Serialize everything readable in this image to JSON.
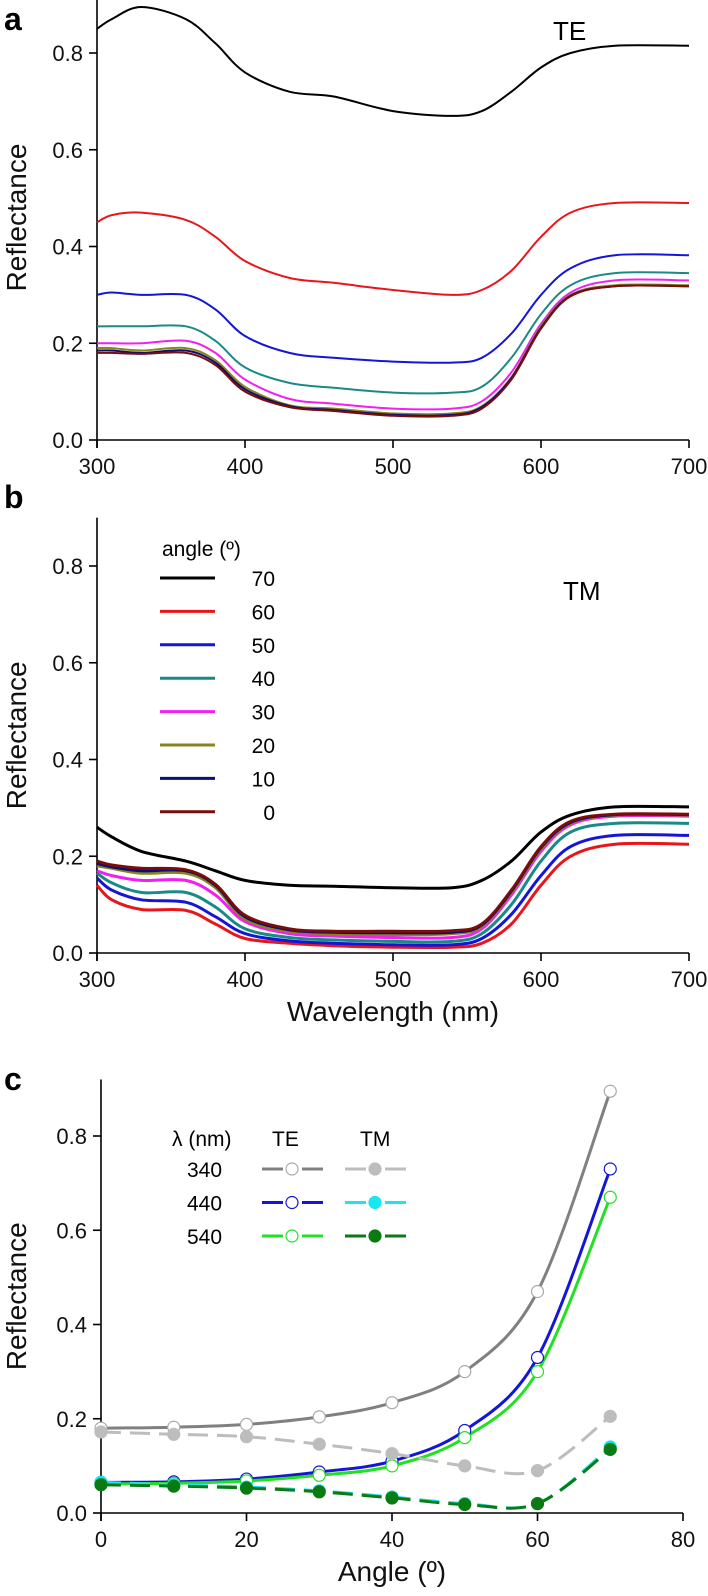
{
  "chart_data": [
    {
      "panel": "a",
      "type": "line",
      "annotation": "TE",
      "xlabel": "",
      "ylabel": "Reflectance",
      "xlim": [
        300,
        700
      ],
      "ylim": [
        0,
        0.92
      ],
      "xticks": [
        300,
        400,
        500,
        600,
        700
      ],
      "yticks": [
        "0.0",
        "0.2",
        "0.4",
        "0.6",
        "0.8"
      ],
      "x": [
        300,
        310,
        330,
        360,
        380,
        400,
        430,
        460,
        500,
        540,
        560,
        580,
        600,
        620,
        650,
        700
      ],
      "series": [
        {
          "name": "70",
          "color": "#000000",
          "values": [
            0.85,
            0.87,
            0.895,
            0.87,
            0.82,
            0.76,
            0.72,
            0.71,
            0.68,
            0.67,
            0.68,
            0.72,
            0.77,
            0.8,
            0.815,
            0.815
          ]
        },
        {
          "name": "60",
          "color": "#e8161b",
          "values": [
            0.45,
            0.465,
            0.47,
            0.455,
            0.42,
            0.37,
            0.335,
            0.325,
            0.31,
            0.3,
            0.31,
            0.35,
            0.42,
            0.47,
            0.49,
            0.49
          ]
        },
        {
          "name": "50",
          "color": "#1515d8",
          "values": [
            0.3,
            0.305,
            0.3,
            0.3,
            0.27,
            0.215,
            0.18,
            0.17,
            0.162,
            0.16,
            0.17,
            0.22,
            0.3,
            0.355,
            0.382,
            0.382
          ]
        },
        {
          "name": "40",
          "color": "#1a8a86",
          "values": [
            0.235,
            0.235,
            0.235,
            0.235,
            0.205,
            0.15,
            0.118,
            0.108,
            0.098,
            0.098,
            0.11,
            0.17,
            0.26,
            0.32,
            0.345,
            0.345
          ]
        },
        {
          "name": "30",
          "color": "#f21ef2",
          "values": [
            0.2,
            0.2,
            0.2,
            0.205,
            0.18,
            0.125,
            0.085,
            0.075,
            0.065,
            0.065,
            0.08,
            0.14,
            0.24,
            0.305,
            0.33,
            0.33
          ]
        },
        {
          "name": "20",
          "color": "#86861a",
          "values": [
            0.19,
            0.19,
            0.185,
            0.19,
            0.165,
            0.11,
            0.072,
            0.065,
            0.055,
            0.055,
            0.07,
            0.13,
            0.235,
            0.3,
            0.32,
            0.32
          ]
        },
        {
          "name": "10",
          "color": "#0c0c7a",
          "values": [
            0.185,
            0.185,
            0.18,
            0.185,
            0.16,
            0.105,
            0.07,
            0.062,
            0.052,
            0.052,
            0.068,
            0.128,
            0.232,
            0.298,
            0.318,
            0.318
          ]
        },
        {
          "name": "0",
          "color": "#7a0c0c",
          "values": [
            0.18,
            0.18,
            0.178,
            0.18,
            0.155,
            0.1,
            0.068,
            0.06,
            0.05,
            0.05,
            0.065,
            0.125,
            0.23,
            0.297,
            0.318,
            0.318
          ]
        }
      ]
    },
    {
      "panel": "b",
      "type": "line",
      "annotation": "TM",
      "xlabel": "Wavelength (nm)",
      "ylabel": "Reflectance",
      "xlim": [
        300,
        700
      ],
      "ylim": [
        0,
        0.9
      ],
      "xticks": [
        300,
        400,
        500,
        600,
        700
      ],
      "yticks": [
        "0.0",
        "0.2",
        "0.4",
        "0.6",
        "0.8"
      ],
      "legend_title": "angle (º)",
      "legend_position": "top-left",
      "x": [
        300,
        310,
        330,
        360,
        380,
        400,
        430,
        460,
        500,
        540,
        560,
        580,
        600,
        620,
        650,
        700
      ],
      "series": [
        {
          "name": "70",
          "color": "#000000",
          "values": [
            0.26,
            0.24,
            0.21,
            0.19,
            0.17,
            0.15,
            0.14,
            0.138,
            0.135,
            0.135,
            0.15,
            0.19,
            0.25,
            0.285,
            0.302,
            0.302
          ]
        },
        {
          "name": "60",
          "color": "#e8161b",
          "values": [
            0.14,
            0.11,
            0.09,
            0.088,
            0.06,
            0.03,
            0.02,
            0.015,
            0.012,
            0.012,
            0.02,
            0.06,
            0.14,
            0.2,
            0.225,
            0.225
          ]
        },
        {
          "name": "50",
          "color": "#1515d8",
          "values": [
            0.155,
            0.13,
            0.11,
            0.105,
            0.075,
            0.04,
            0.025,
            0.02,
            0.017,
            0.017,
            0.03,
            0.08,
            0.16,
            0.22,
            0.243,
            0.243
          ]
        },
        {
          "name": "40",
          "color": "#1a8a86",
          "values": [
            0.165,
            0.145,
            0.125,
            0.125,
            0.095,
            0.05,
            0.032,
            0.027,
            0.024,
            0.024,
            0.04,
            0.1,
            0.19,
            0.25,
            0.268,
            0.268
          ]
        },
        {
          "name": "30",
          "color": "#f21ef2",
          "values": [
            0.17,
            0.16,
            0.15,
            0.15,
            0.12,
            0.065,
            0.04,
            0.035,
            0.032,
            0.032,
            0.05,
            0.12,
            0.21,
            0.265,
            0.283,
            0.283
          ]
        },
        {
          "name": "20",
          "color": "#86861a",
          "values": [
            0.18,
            0.175,
            0.165,
            0.165,
            0.135,
            0.07,
            0.045,
            0.04,
            0.038,
            0.04,
            0.055,
            0.125,
            0.215,
            0.268,
            0.285,
            0.285
          ]
        },
        {
          "name": "10",
          "color": "#0c0c7a",
          "values": [
            0.185,
            0.178,
            0.17,
            0.17,
            0.14,
            0.075,
            0.048,
            0.043,
            0.042,
            0.043,
            0.058,
            0.128,
            0.218,
            0.27,
            0.286,
            0.286
          ]
        },
        {
          "name": "0",
          "color": "#7a0c0c",
          "values": [
            0.19,
            0.182,
            0.175,
            0.172,
            0.142,
            0.078,
            0.05,
            0.045,
            0.045,
            0.046,
            0.06,
            0.13,
            0.22,
            0.272,
            0.287,
            0.287
          ]
        }
      ]
    },
    {
      "panel": "c",
      "type": "line",
      "xlabel": "Angle (º)",
      "ylabel": "Reflectance",
      "xlim": [
        0,
        80
      ],
      "ylim": [
        0,
        0.92
      ],
      "xticks": [
        0,
        20,
        40,
        60,
        80
      ],
      "yticks": [
        "0.0",
        "0.2",
        "0.4",
        "0.6",
        "0.8"
      ],
      "legend_header": {
        "wavelength": "λ (nm)",
        "te": "TE",
        "tm": "TM"
      },
      "legend_position": "top-left",
      "x": [
        0,
        10,
        20,
        30,
        40,
        50,
        60,
        70
      ],
      "series": [
        {
          "name": "340",
          "mode": "TE",
          "color": "#808080",
          "marker_color": "#aaaaaa",
          "filled": false,
          "values": [
            0.18,
            0.182,
            0.188,
            0.204,
            0.234,
            0.3,
            0.47,
            0.895
          ]
        },
        {
          "name": "440",
          "mode": "TE",
          "color": "#1515d8",
          "marker_color": "#1515d8",
          "filled": false,
          "values": [
            0.065,
            0.066,
            0.072,
            0.087,
            0.11,
            0.175,
            0.33,
            0.73
          ]
        },
        {
          "name": "540",
          "mode": "TE",
          "color": "#22e022",
          "marker_color": "#22e022",
          "filled": false,
          "values": [
            0.062,
            0.063,
            0.068,
            0.08,
            0.1,
            0.16,
            0.3,
            0.67
          ]
        },
        {
          "name": "340",
          "mode": "TM",
          "color": "#bdbdbd",
          "marker_color": "#bdbdbd",
          "filled": true,
          "values": [
            0.172,
            0.167,
            0.162,
            0.146,
            0.126,
            0.1,
            0.09,
            0.205
          ]
        },
        {
          "name": "440",
          "mode": "TM",
          "color": "#18e6f0",
          "marker_color": "#18e6f0",
          "filled": true,
          "values": [
            0.065,
            0.06,
            0.055,
            0.047,
            0.034,
            0.02,
            0.02,
            0.14
          ]
        },
        {
          "name": "540",
          "mode": "TM",
          "color": "#0a7a12",
          "marker_color": "#0a7a12",
          "filled": true,
          "values": [
            0.06,
            0.057,
            0.053,
            0.045,
            0.032,
            0.018,
            0.02,
            0.135
          ]
        }
      ]
    }
  ]
}
